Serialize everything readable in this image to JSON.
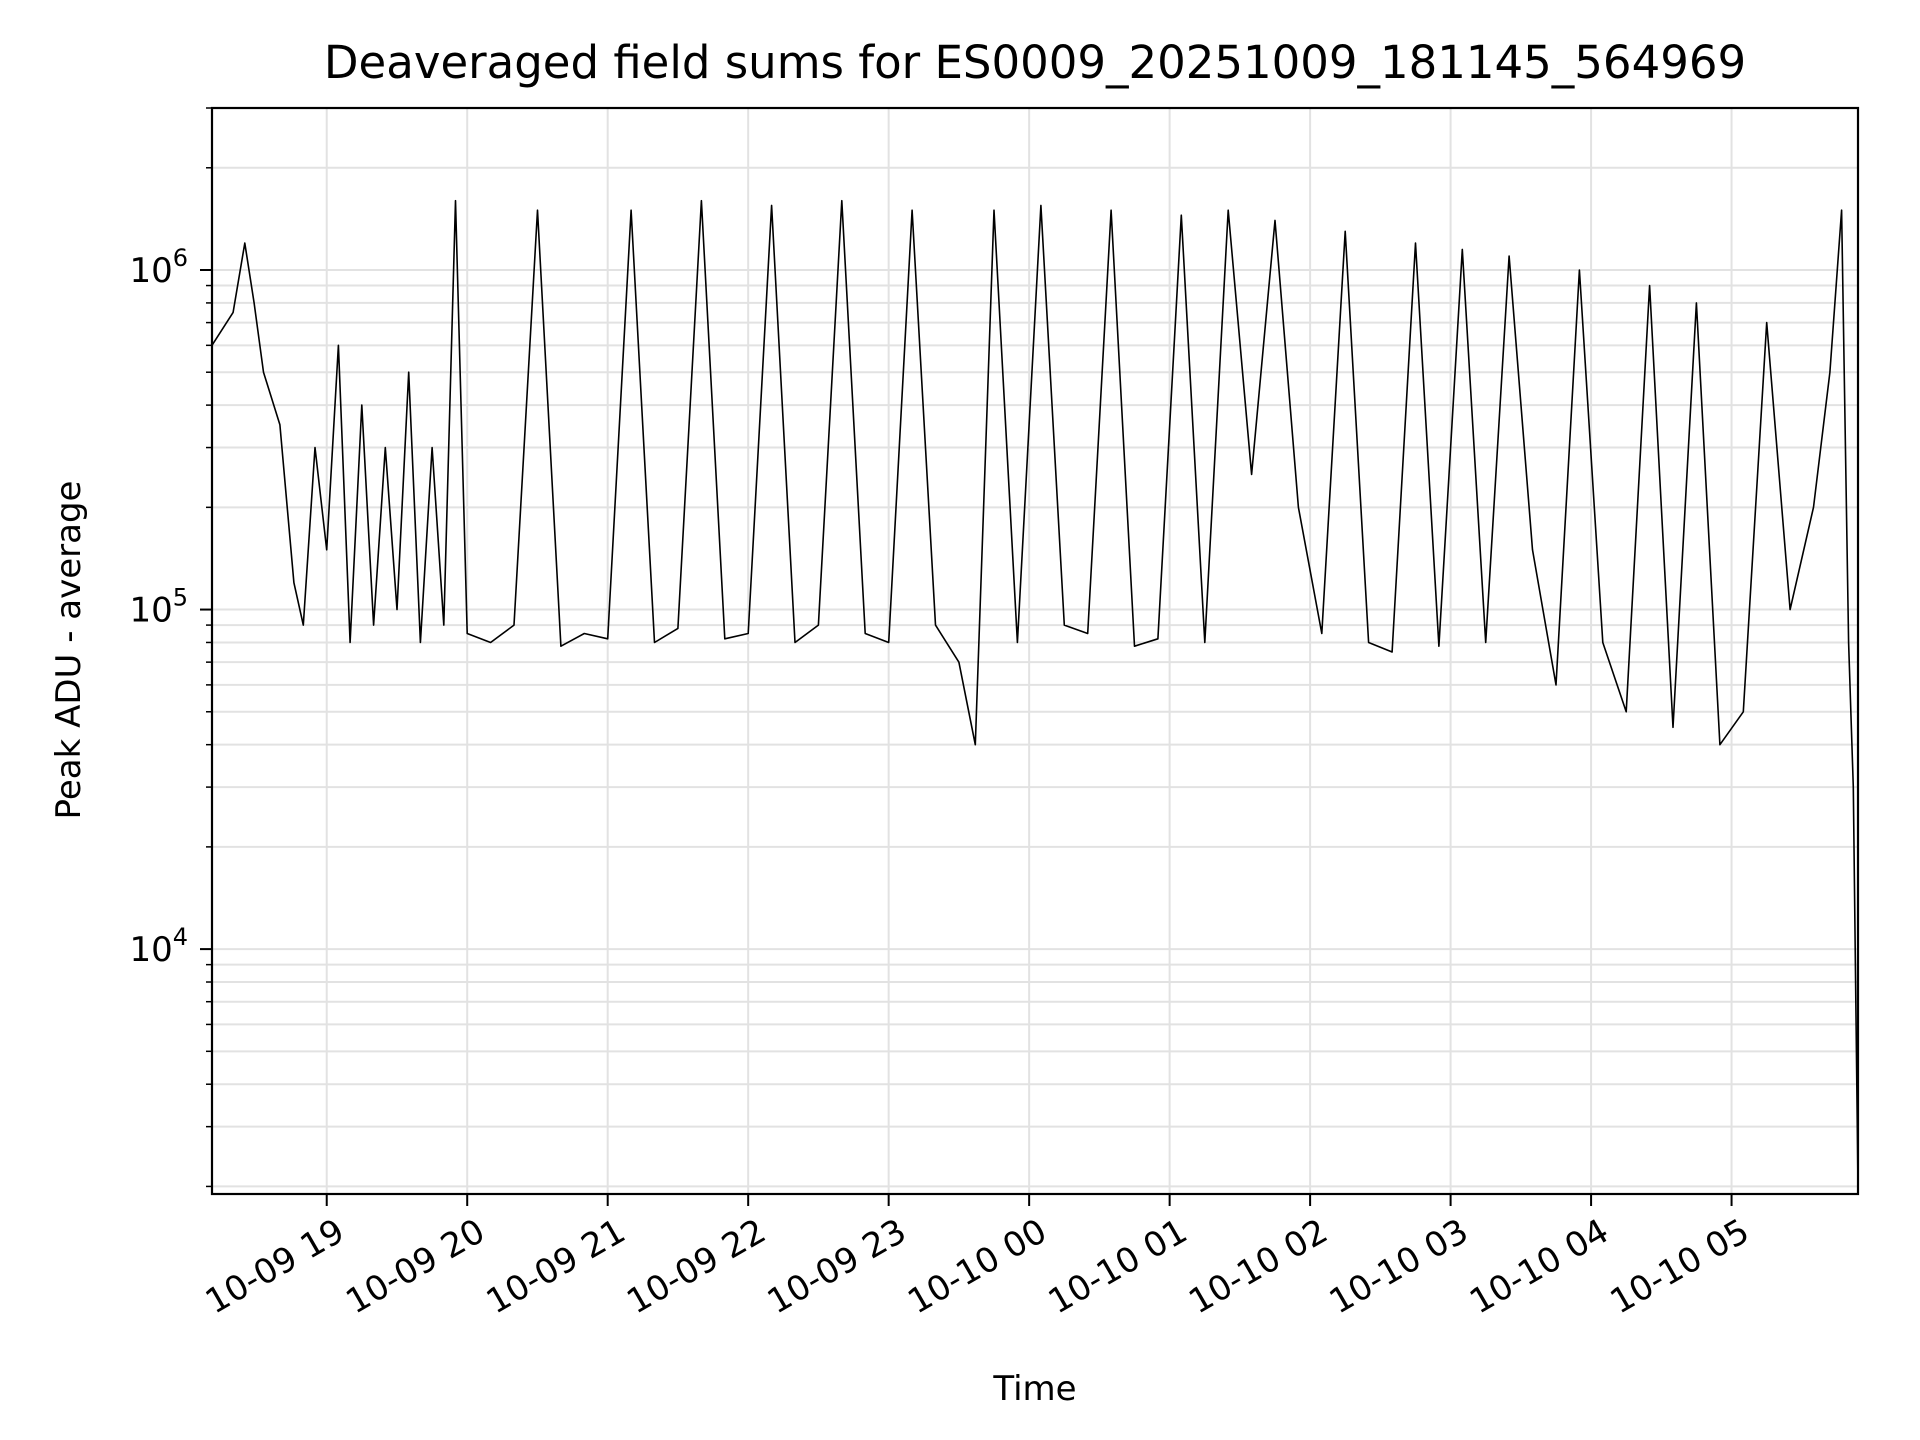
{
  "chart_data": {
    "type": "line",
    "title": "Deaveraged field sums for ES0009_20251009_181145_564969",
    "xlabel": "Time",
    "ylabel": "Peak ADU - average",
    "yscale": "log",
    "ylim": [
      1900,
      3000000
    ],
    "xlim": [
      "2025-10-09 18:11",
      "2025-10-10 05:54"
    ],
    "grid": true,
    "line_color": "#000000",
    "x_ticks": [
      {
        "time": "2025-10-09 19:00",
        "label": "10-09 19"
      },
      {
        "time": "2025-10-09 20:00",
        "label": "10-09 20"
      },
      {
        "time": "2025-10-09 21:00",
        "label": "10-09 21"
      },
      {
        "time": "2025-10-09 22:00",
        "label": "10-09 22"
      },
      {
        "time": "2025-10-09 23:00",
        "label": "10-09 23"
      },
      {
        "time": "2025-10-10 00:00",
        "label": "10-10 00"
      },
      {
        "time": "2025-10-10 01:00",
        "label": "10-10 01"
      },
      {
        "time": "2025-10-10 02:00",
        "label": "10-10 02"
      },
      {
        "time": "2025-10-10 03:00",
        "label": "10-10 03"
      },
      {
        "time": "2025-10-10 04:00",
        "label": "10-10 04"
      },
      {
        "time": "2025-10-10 05:00",
        "label": "10-10 05"
      }
    ],
    "y_ticks": [
      {
        "value": 10000,
        "base": "10",
        "exp": "4"
      },
      {
        "value": 100000,
        "base": "10",
        "exp": "5"
      },
      {
        "value": 1000000,
        "base": "10",
        "exp": "6"
      }
    ],
    "series": [
      {
        "x": [
          "2025-10-09 18:11",
          "2025-10-09 18:20",
          "2025-10-09 18:25",
          "2025-10-09 18:29",
          "2025-10-09 18:33",
          "2025-10-09 18:40",
          "2025-10-09 18:46",
          "2025-10-09 18:50",
          "2025-10-09 18:55",
          "2025-10-09 19:00",
          "2025-10-09 19:05",
          "2025-10-09 19:10",
          "2025-10-09 19:15",
          "2025-10-09 19:20",
          "2025-10-09 19:25",
          "2025-10-09 19:30",
          "2025-10-09 19:35",
          "2025-10-09 19:40",
          "2025-10-09 19:45",
          "2025-10-09 19:50",
          "2025-10-09 19:55",
          "2025-10-09 20:00",
          "2025-10-09 20:10",
          "2025-10-09 20:20",
          "2025-10-09 20:30",
          "2025-10-09 20:40",
          "2025-10-09 20:50",
          "2025-10-09 21:00",
          "2025-10-09 21:10",
          "2025-10-09 21:20",
          "2025-10-09 21:30",
          "2025-10-09 21:40",
          "2025-10-09 21:50",
          "2025-10-09 22:00",
          "2025-10-09 22:10",
          "2025-10-09 22:20",
          "2025-10-09 22:30",
          "2025-10-09 22:40",
          "2025-10-09 22:50",
          "2025-10-09 23:00",
          "2025-10-09 23:10",
          "2025-10-09 23:20",
          "2025-10-09 23:30",
          "2025-10-09 23:37",
          "2025-10-09 23:45",
          "2025-10-09 23:55",
          "2025-10-10 00:05",
          "2025-10-10 00:15",
          "2025-10-10 00:25",
          "2025-10-10 00:35",
          "2025-10-10 00:45",
          "2025-10-10 00:55",
          "2025-10-10 01:05",
          "2025-10-10 01:15",
          "2025-10-10 01:25",
          "2025-10-10 01:35",
          "2025-10-10 01:45",
          "2025-10-10 01:55",
          "2025-10-10 02:05",
          "2025-10-10 02:15",
          "2025-10-10 02:25",
          "2025-10-10 02:35",
          "2025-10-10 02:45",
          "2025-10-10 02:55",
          "2025-10-10 03:05",
          "2025-10-10 03:15",
          "2025-10-10 03:25",
          "2025-10-10 03:35",
          "2025-10-10 03:45",
          "2025-10-10 03:55",
          "2025-10-10 04:05",
          "2025-10-10 04:15",
          "2025-10-10 04:25",
          "2025-10-10 04:35",
          "2025-10-10 04:45",
          "2025-10-10 04:55",
          "2025-10-10 05:05",
          "2025-10-10 05:15",
          "2025-10-10 05:25",
          "2025-10-10 05:35",
          "2025-10-10 05:42",
          "2025-10-10 05:47",
          "2025-10-10 05:50",
          "2025-10-10 05:52",
          "2025-10-10 05:54"
        ],
        "y": [
          600000,
          750000,
          1200000,
          800000,
          500000,
          350000,
          120000,
          90000,
          300000,
          150000,
          600000,
          80000,
          400000,
          90000,
          300000,
          100000,
          500000,
          80000,
          300000,
          90000,
          1600000,
          85000,
          80000,
          90000,
          1500000,
          78000,
          85000,
          82000,
          1500000,
          80000,
          88000,
          1600000,
          82000,
          85000,
          1550000,
          80000,
          90000,
          1600000,
          85000,
          80000,
          1500000,
          90000,
          70000,
          40000,
          1500000,
          80000,
          1550000,
          90000,
          85000,
          1500000,
          78000,
          82000,
          1450000,
          80000,
          1500000,
          250000,
          1400000,
          200000,
          85000,
          1300000,
          80000,
          75000,
          1200000,
          78000,
          1150000,
          80000,
          1100000,
          150000,
          60000,
          1000000,
          80000,
          50000,
          900000,
          45000,
          800000,
          40000,
          50000,
          700000,
          100000,
          200000,
          500000,
          1500000,
          80000,
          30000,
          2000
        ]
      }
    ]
  }
}
